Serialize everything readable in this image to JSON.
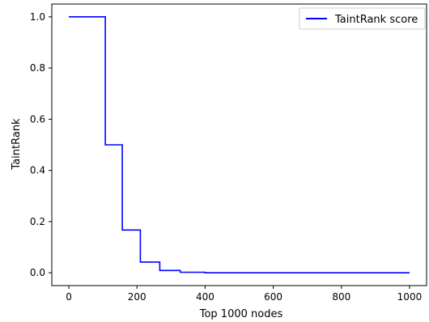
{
  "chart_data": {
    "type": "line",
    "title": "",
    "xlabel": "Top 1000 nodes",
    "ylabel": "TaintRank",
    "xlim": [
      -50,
      1050
    ],
    "ylim": [
      -0.05,
      1.05
    ],
    "xticks": [
      0,
      200,
      400,
      600,
      800,
      1000
    ],
    "xtick_labels": [
      "0",
      "200",
      "400",
      "600",
      "800",
      "1000"
    ],
    "yticks": [
      0.0,
      0.2,
      0.4,
      0.6,
      0.8,
      1.0
    ],
    "ytick_labels": [
      "0.0",
      "0.2",
      "0.4",
      "0.6",
      "0.8",
      "1.0"
    ],
    "grid": false,
    "legend_position": "top-right",
    "series": [
      {
        "name": "TaintRank score",
        "color": "#0000ff",
        "step": "post",
        "x": [
          0,
          107,
          157,
          210,
          267,
          327,
          400,
          1000
        ],
        "y": [
          1.0,
          0.5,
          0.167,
          0.042,
          0.009,
          0.002,
          0.0,
          0.0
        ]
      }
    ]
  }
}
